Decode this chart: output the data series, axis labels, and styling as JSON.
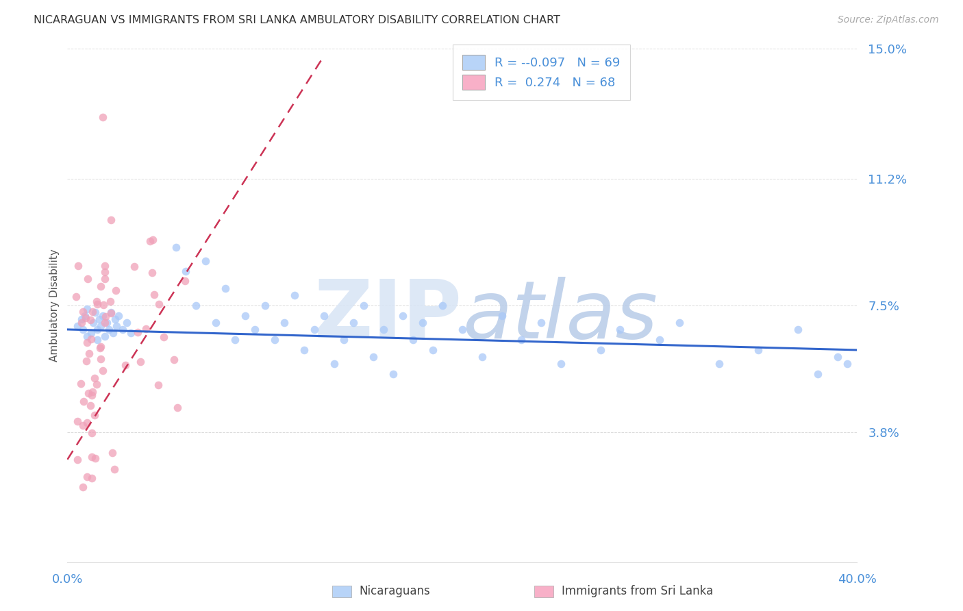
{
  "title": "NICARAGUAN VS IMMIGRANTS FROM SRI LANKA AMBULATORY DISABILITY CORRELATION CHART",
  "source": "Source: ZipAtlas.com",
  "xlabel_nicaraguan": "Nicaraguans",
  "xlabel_sri_lanka": "Immigrants from Sri Lanka",
  "ylabel": "Ambulatory Disability",
  "xlim": [
    0.0,
    0.4
  ],
  "ylim": [
    0.0,
    0.15
  ],
  "yticks": [
    0.038,
    0.075,
    0.112,
    0.15
  ],
  "ytick_labels": [
    "3.8%",
    "7.5%",
    "11.2%",
    "15.0%"
  ],
  "xtick_labels": [
    "0.0%",
    "40.0%"
  ],
  "xtick_vals": [
    0.0,
    0.4
  ],
  "legend_r1": "-0.097",
  "legend_n1": "69",
  "legend_r2": "0.274",
  "legend_n2": "68",
  "color_nicaraguan_dot": "#a8c8f8",
  "color_sri_lanka_dot": "#f0a0b8",
  "color_trend_nicaraguan": "#3366cc",
  "color_trend_sri_lanka": "#cc3355",
  "color_title": "#333333",
  "color_axis": "#4a90d9",
  "color_watermark": "#d0ddf5",
  "watermark_zip": "ZIP",
  "watermark_atlas": "atlas",
  "background_color": "#ffffff",
  "grid_color": "#cccccc",
  "legend_box_nic": "#b8d4f8",
  "legend_box_sl": "#f8b0c8"
}
